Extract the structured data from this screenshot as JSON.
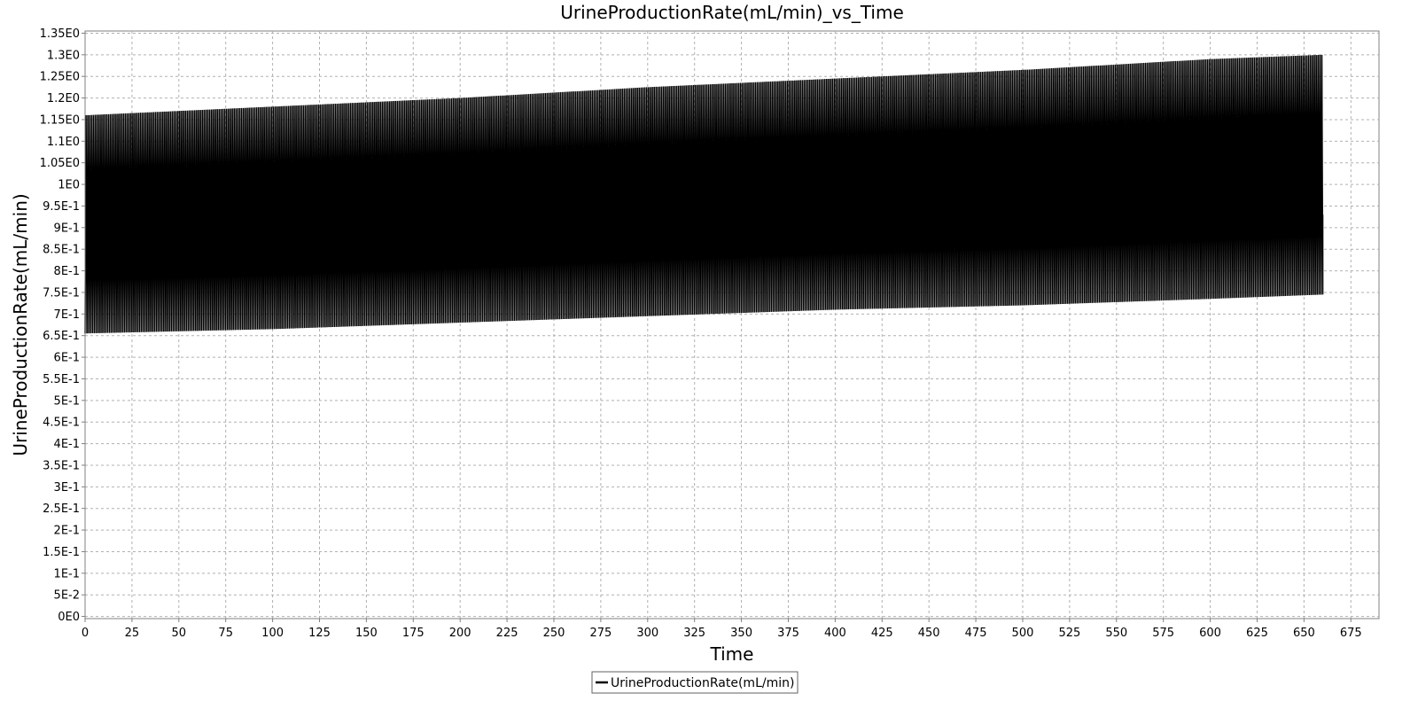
{
  "chart_data": {
    "type": "line",
    "title": "UrineProductionRate(mL/min)_vs_Time",
    "xlabel": "Time",
    "ylabel": "UrineProductionRate(mL/min)",
    "xlim": [
      0,
      690
    ],
    "ylim": [
      -0.005,
      1.355
    ],
    "x_ticks": [
      0,
      25,
      50,
      75,
      100,
      125,
      150,
      175,
      200,
      225,
      250,
      275,
      300,
      325,
      350,
      375,
      400,
      425,
      450,
      475,
      500,
      525,
      550,
      575,
      600,
      625,
      650,
      675
    ],
    "y_ticks": [
      {
        "value": 0.0,
        "label": "0E0"
      },
      {
        "value": 0.05,
        "label": "5E-2"
      },
      {
        "value": 0.1,
        "label": "1E-1"
      },
      {
        "value": 0.15,
        "label": "1.5E-1"
      },
      {
        "value": 0.2,
        "label": "2E-1"
      },
      {
        "value": 0.25,
        "label": "2.5E-1"
      },
      {
        "value": 0.3,
        "label": "3E-1"
      },
      {
        "value": 0.35,
        "label": "3.5E-1"
      },
      {
        "value": 0.4,
        "label": "4E-1"
      },
      {
        "value": 0.45,
        "label": "4.5E-1"
      },
      {
        "value": 0.5,
        "label": "5E-1"
      },
      {
        "value": 0.55,
        "label": "5.5E-1"
      },
      {
        "value": 0.6,
        "label": "6E-1"
      },
      {
        "value": 0.65,
        "label": "6.5E-1"
      },
      {
        "value": 0.7,
        "label": "7E-1"
      },
      {
        "value": 0.75,
        "label": "7.5E-1"
      },
      {
        "value": 0.8,
        "label": "8E-1"
      },
      {
        "value": 0.85,
        "label": "8.5E-1"
      },
      {
        "value": 0.9,
        "label": "9E-1"
      },
      {
        "value": 0.95,
        "label": "9.5E-1"
      },
      {
        "value": 1.0,
        "label": "1E0"
      },
      {
        "value": 1.05,
        "label": "1.05E0"
      },
      {
        "value": 1.1,
        "label": "1.1E0"
      },
      {
        "value": 1.15,
        "label": "1.15E0"
      },
      {
        "value": 1.2,
        "label": "1.2E0"
      },
      {
        "value": 1.25,
        "label": "1.25E0"
      },
      {
        "value": 1.3,
        "label": "1.3E0"
      },
      {
        "value": 1.35,
        "label": "1.35E0"
      }
    ],
    "grid": true,
    "legend_position": "bottom-center",
    "series": [
      {
        "name": "UrineProductionRate(mL/min)",
        "color": "#000000",
        "pattern": "dense oscillation (~1 cycle per minute)",
        "x_range": [
          0,
          660
        ],
        "envelope_x": [
          0,
          100,
          200,
          300,
          400,
          500,
          600,
          660
        ],
        "envelope_max": [
          1.16,
          1.18,
          1.2,
          1.225,
          1.245,
          1.265,
          1.29,
          1.3
        ],
        "envelope_min": [
          0.655,
          0.665,
          0.68,
          0.695,
          0.71,
          0.72,
          0.735,
          0.745
        ],
        "end_value": 0.93
      }
    ]
  }
}
